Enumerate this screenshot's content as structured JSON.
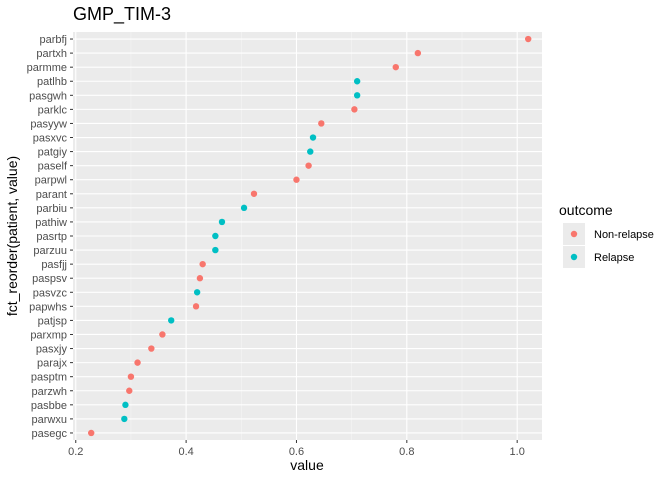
{
  "chart_data": {
    "type": "scatter",
    "title": "GMP_TIM-3",
    "xlabel": "value",
    "ylabel": "fct_reorder(patient, value)",
    "xlim": [
      0.195,
      1.045
    ],
    "x_ticks": [
      "0.2",
      "0.4",
      "0.6",
      "0.8",
      "1.0"
    ],
    "x_tick_values": [
      0.2,
      0.4,
      0.6,
      0.8,
      1.0
    ],
    "grid": true,
    "legend": {
      "title": "outcome",
      "placement": "right",
      "entries": [
        {
          "label": "Non-relapse",
          "color": "#F8766D"
        },
        {
          "label": "Relapse",
          "color": "#00BFC4"
        }
      ]
    },
    "points": [
      {
        "patient": "parbfj",
        "value": 1.02,
        "outcome": "Non-relapse"
      },
      {
        "patient": "partxh",
        "value": 0.82,
        "outcome": "Non-relapse"
      },
      {
        "patient": "parmme",
        "value": 0.78,
        "outcome": "Non-relapse"
      },
      {
        "patient": "patlhb",
        "value": 0.71,
        "outcome": "Relapse"
      },
      {
        "patient": "pasgwh",
        "value": 0.71,
        "outcome": "Relapse"
      },
      {
        "patient": "parklc",
        "value": 0.705,
        "outcome": "Non-relapse"
      },
      {
        "patient": "pasyyw",
        "value": 0.645,
        "outcome": "Non-relapse"
      },
      {
        "patient": "pasxvc",
        "value": 0.63,
        "outcome": "Relapse"
      },
      {
        "patient": "patgiy",
        "value": 0.625,
        "outcome": "Relapse"
      },
      {
        "patient": "paself",
        "value": 0.622,
        "outcome": "Non-relapse"
      },
      {
        "patient": "parpwl",
        "value": 0.6,
        "outcome": "Non-relapse"
      },
      {
        "patient": "parant",
        "value": 0.523,
        "outcome": "Non-relapse"
      },
      {
        "patient": "parbiu",
        "value": 0.505,
        "outcome": "Relapse"
      },
      {
        "patient": "pathiw",
        "value": 0.465,
        "outcome": "Relapse"
      },
      {
        "patient": "pasrtp",
        "value": 0.453,
        "outcome": "Relapse"
      },
      {
        "patient": "parzuu",
        "value": 0.453,
        "outcome": "Relapse"
      },
      {
        "patient": "pasfjj",
        "value": 0.43,
        "outcome": "Non-relapse"
      },
      {
        "patient": "paspsv",
        "value": 0.425,
        "outcome": "Non-relapse"
      },
      {
        "patient": "pasvzc",
        "value": 0.42,
        "outcome": "Relapse"
      },
      {
        "patient": "papwhs",
        "value": 0.418,
        "outcome": "Non-relapse"
      },
      {
        "patient": "patjsp",
        "value": 0.373,
        "outcome": "Relapse"
      },
      {
        "patient": "parxmp",
        "value": 0.357,
        "outcome": "Non-relapse"
      },
      {
        "patient": "pasxjy",
        "value": 0.337,
        "outcome": "Non-relapse"
      },
      {
        "patient": "parajx",
        "value": 0.312,
        "outcome": "Non-relapse"
      },
      {
        "patient": "pasptm",
        "value": 0.3,
        "outcome": "Non-relapse"
      },
      {
        "patient": "parzwh",
        "value": 0.297,
        "outcome": "Non-relapse"
      },
      {
        "patient": "pasbbe",
        "value": 0.29,
        "outcome": "Relapse"
      },
      {
        "patient": "parwxu",
        "value": 0.288,
        "outcome": "Relapse"
      },
      {
        "patient": "pasegc",
        "value": 0.228,
        "outcome": "Non-relapse"
      }
    ]
  }
}
